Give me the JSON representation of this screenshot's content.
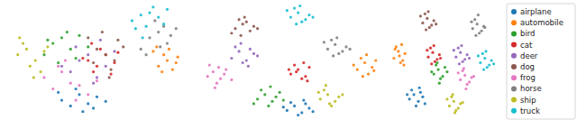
{
  "chart_data": [
    {
      "type": "scatter",
      "xlim": [
        0,
        100
      ],
      "ylim": [
        0,
        100
      ],
      "tick_labels": false,
      "series": [
        {
          "name": "airplane",
          "color": "#1f77b4",
          "x": [
            30,
            35,
            40,
            45,
            50,
            38,
            42,
            55,
            28,
            48
          ],
          "values": [
            15,
            10,
            20,
            12,
            18,
            25,
            5,
            14,
            22,
            8
          ]
        },
        {
          "name": "automobile",
          "color": "#ff7f0e",
          "x": [
            85,
            90,
            93,
            88,
            95,
            82,
            91,
            87,
            96,
            84
          ],
          "values": [
            45,
            50,
            42,
            55,
            48,
            58,
            60,
            40,
            53,
            62
          ]
        },
        {
          "name": "bird",
          "color": "#2ca02c",
          "x": [
            25,
            30,
            35,
            20,
            40,
            28,
            45,
            33,
            22,
            38
          ],
          "values": [
            65,
            70,
            60,
            55,
            72,
            48,
            62,
            75,
            68,
            52
          ]
        },
        {
          "name": "cat",
          "color": "#d62728",
          "x": [
            45,
            50,
            55,
            48,
            60,
            52,
            42,
            58,
            47,
            62
          ],
          "values": [
            50,
            45,
            55,
            40,
            48,
            60,
            52,
            38,
            65,
            57
          ]
        },
        {
          "name": "deer",
          "color": "#9467bd",
          "x": [
            35,
            40,
            50,
            45,
            55,
            30,
            60,
            38,
            48,
            52
          ],
          "values": [
            40,
            50,
            35,
            55,
            45,
            45,
            58,
            62,
            30,
            68
          ]
        },
        {
          "name": "dog",
          "color": "#8c564b",
          "x": [
            50,
            55,
            60,
            45,
            65,
            58,
            53,
            48,
            62,
            57
          ],
          "values": [
            60,
            55,
            50,
            70,
            62,
            42,
            75,
            48,
            68,
            35
          ]
        },
        {
          "name": "frog",
          "color": "#e377c2",
          "x": [
            20,
            25,
            30,
            35,
            40,
            45,
            28,
            38,
            50,
            32
          ],
          "values": [
            35,
            25,
            40,
            30,
            28,
            20,
            45,
            15,
            32,
            50
          ]
        },
        {
          "name": "horse",
          "color": "#7f7f7f",
          "x": [
            80,
            85,
            90,
            88,
            75,
            92,
            83,
            78,
            95,
            86
          ],
          "values": [
            70,
            75,
            65,
            80,
            60,
            72,
            85,
            55,
            78,
            62
          ]
        },
        {
          "name": "ship",
          "color": "#bcbd22",
          "x": [
            5,
            10,
            15,
            8,
            12,
            20,
            18,
            6,
            14,
            22
          ],
          "values": [
            55,
            60,
            50,
            65,
            45,
            58,
            40,
            70,
            35,
            62
          ]
        },
        {
          "name": "truck",
          "color": "#17becf",
          "x": [
            70,
            75,
            80,
            85,
            78,
            90,
            72,
            82,
            88,
            76
          ],
          "values": [
            85,
            90,
            92,
            88,
            80,
            95,
            78,
            97,
            82,
            70
          ]
        }
      ]
    },
    {
      "type": "scatter",
      "xlim": [
        0,
        100
      ],
      "ylim": [
        0,
        100
      ],
      "tick_labels": false,
      "series": [
        {
          "name": "airplane",
          "color": "#1f77b4",
          "x": [
            48,
            52,
            56,
            60,
            50,
            58,
            54,
            62,
            46,
            57
          ],
          "values": [
            6,
            10,
            4,
            8,
            13,
            12,
            2,
            5,
            9,
            15
          ]
        },
        {
          "name": "automobile",
          "color": "#ff7f0e",
          "x": [
            86,
            90,
            94,
            88,
            92,
            96,
            84,
            91,
            89,
            95
          ],
          "values": [
            42,
            48,
            44,
            52,
            38,
            50,
            46,
            55,
            36,
            41
          ]
        },
        {
          "name": "bird",
          "color": "#2ca02c",
          "x": [
            32,
            36,
            40,
            44,
            38,
            42,
            34,
            46,
            39,
            30
          ],
          "values": [
            16,
            20,
            14,
            22,
            10,
            18,
            24,
            15,
            27,
            12
          ]
        },
        {
          "name": "cat",
          "color": "#d62728",
          "x": [
            50,
            54,
            58,
            52,
            56,
            60,
            53,
            57,
            49,
            59
          ],
          "values": [
            38,
            42,
            36,
            46,
            34,
            44,
            40,
            48,
            42,
            32
          ]
        },
        {
          "name": "deer",
          "color": "#9467bd",
          "x": [
            18,
            22,
            26,
            30,
            20,
            24,
            28,
            32,
            23,
            27
          ],
          "values": [
            52,
            58,
            50,
            56,
            62,
            48,
            60,
            54,
            65,
            45
          ]
        },
        {
          "name": "dog",
          "color": "#8c564b",
          "x": [
            20,
            24,
            28,
            22,
            26,
            30,
            18,
            25,
            32,
            23
          ],
          "values": [
            78,
            82,
            76,
            86,
            84,
            80,
            74,
            88,
            78,
            72
          ]
        },
        {
          "name": "frog",
          "color": "#e377c2",
          "x": [
            5,
            8,
            12,
            15,
            10,
            6,
            14,
            18,
            9,
            11
          ],
          "values": [
            36,
            40,
            34,
            42,
            30,
            46,
            38,
            33,
            26,
            44
          ]
        },
        {
          "name": "horse",
          "color": "#7f7f7f",
          "x": [
            70,
            74,
            78,
            72,
            76,
            80,
            68,
            75,
            82,
            73
          ],
          "values": [
            60,
            64,
            58,
            68,
            56,
            62,
            66,
            70,
            60,
            54
          ]
        },
        {
          "name": "ship",
          "color": "#bcbd22",
          "x": [
            66,
            70,
            74,
            68,
            72,
            76,
            65,
            71,
            78,
            69
          ],
          "values": [
            16,
            20,
            14,
            24,
            10,
            18,
            22,
            12,
            20,
            28
          ]
        },
        {
          "name": "truck",
          "color": "#17becf",
          "x": [
            50,
            54,
            58,
            52,
            56,
            60,
            48,
            55,
            62,
            53
          ],
          "values": [
            88,
            92,
            86,
            96,
            84,
            90,
            94,
            98,
            88,
            82
          ]
        }
      ]
    },
    {
      "type": "scatter",
      "xlim": [
        0,
        100
      ],
      "ylim": [
        0,
        100
      ],
      "tick_labels": false,
      "legend": "right",
      "series": [
        {
          "name": "airplane",
          "color": "#1f77b4",
          "x": [
            18,
            22,
            26,
            30,
            20,
            24,
            28,
            32,
            16,
            27
          ],
          "values": [
            16,
            20,
            14,
            18,
            24,
            10,
            22,
            12,
            20,
            26
          ]
        },
        {
          "name": "automobile",
          "color": "#ff7f0e",
          "x": [
            4,
            8,
            12,
            6,
            10,
            14,
            5,
            9,
            13,
            11
          ],
          "values": [
            52,
            58,
            50,
            62,
            48,
            56,
            60,
            54,
            46,
            64
          ]
        },
        {
          "name": "bird",
          "color": "#2ca02c",
          "x": [
            40,
            44,
            48,
            42,
            46,
            50,
            38,
            45,
            52,
            43
          ],
          "values": [
            38,
            42,
            36,
            46,
            34,
            44,
            40,
            30,
            40,
            48
          ]
        },
        {
          "name": "cat",
          "color": "#d62728",
          "x": [
            35,
            39,
            43,
            37,
            41,
            45,
            34,
            40,
            46,
            38
          ],
          "values": [
            53,
            57,
            51,
            61,
            49,
            55,
            59,
            63,
            52,
            47
          ]
        },
        {
          "name": "deer",
          "color": "#9467bd",
          "x": [
            60,
            64,
            68,
            62,
            66,
            70,
            58,
            65,
            72,
            63
          ],
          "values": [
            53,
            57,
            51,
            61,
            49,
            55,
            59,
            63,
            52,
            47
          ]
        },
        {
          "name": "dog",
          "color": "#8c564b",
          "x": [
            30,
            34,
            38,
            32,
            36,
            40,
            28,
            35,
            42,
            33
          ],
          "values": [
            83,
            87,
            81,
            91,
            79,
            85,
            89,
            93,
            82,
            77
          ]
        },
        {
          "name": "frog",
          "color": "#e377c2",
          "x": [
            64,
            68,
            72,
            66,
            70,
            74,
            62,
            69,
            76,
            67
          ],
          "values": [
            33,
            37,
            31,
            41,
            29,
            35,
            39,
            25,
            36,
            43
          ]
        },
        {
          "name": "horse",
          "color": "#7f7f7f",
          "x": [
            75,
            79,
            83,
            77,
            81,
            85,
            74,
            80,
            86,
            78
          ],
          "values": [
            78,
            82,
            76,
            86,
            74,
            80,
            84,
            90,
            79,
            72
          ]
        },
        {
          "name": "ship",
          "color": "#bcbd22",
          "x": [
            54,
            58,
            62,
            56,
            60,
            64,
            52,
            59,
            66,
            57
          ],
          "values": [
            10,
            14,
            8,
            18,
            6,
            12,
            16,
            4,
            13,
            20
          ]
        },
        {
          "name": "truck",
          "color": "#17becf",
          "x": [
            82,
            86,
            90,
            84,
            88,
            92,
            80,
            87,
            94,
            85
          ],
          "values": [
            48,
            52,
            46,
            56,
            44,
            50,
            54,
            58,
            47,
            42
          ]
        }
      ]
    }
  ]
}
